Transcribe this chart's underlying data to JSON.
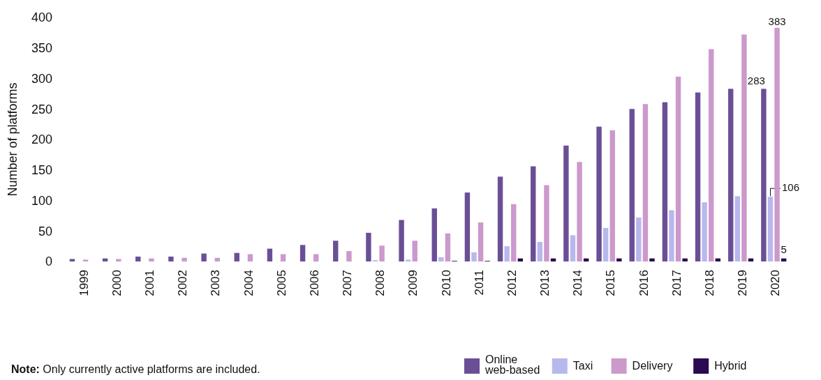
{
  "chart_data": {
    "type": "bar",
    "ylabel": "Number of platforms",
    "categories": [
      "1999",
      "2000",
      "2001",
      "2002",
      "2003",
      "2004",
      "2005",
      "2006",
      "2007",
      "2008",
      "2009",
      "2010",
      "2011",
      "2012",
      "2013",
      "2014",
      "2015",
      "2016",
      "2017",
      "2018",
      "2019",
      "2020"
    ],
    "ylim": [
      0,
      400
    ],
    "yticks": [
      0,
      50,
      100,
      150,
      200,
      250,
      300,
      350,
      400
    ],
    "grid": false,
    "legend": "bottom right",
    "series": [
      {
        "name": "Online web-based",
        "color": "#6a4f96",
        "values": [
          4,
          5,
          8,
          8,
          13,
          14,
          21,
          27,
          34,
          47,
          68,
          87,
          113,
          139,
          156,
          190,
          221,
          250,
          261,
          277,
          283,
          283
        ],
        "value_labels": [
          null,
          null,
          null,
          null,
          null,
          null,
          null,
          null,
          null,
          null,
          null,
          null,
          null,
          null,
          null,
          null,
          null,
          null,
          null,
          null,
          null,
          "283"
        ]
      },
      {
        "name": "Taxi",
        "color": "#b8b8ec",
        "values": [
          0,
          0,
          0,
          0,
          0,
          0,
          0,
          0,
          0,
          2,
          3,
          7,
          15,
          25,
          32,
          43,
          55,
          72,
          84,
          97,
          107,
          106
        ],
        "value_labels": [
          null,
          null,
          null,
          null,
          null,
          null,
          null,
          null,
          null,
          null,
          null,
          null,
          null,
          null,
          null,
          null,
          null,
          null,
          null,
          null,
          null,
          "106"
        ]
      },
      {
        "name": "Delivery",
        "color": "#cc99cc",
        "values": [
          3,
          4,
          5,
          6,
          6,
          12,
          12,
          12,
          17,
          26,
          34,
          46,
          64,
          94,
          125,
          163,
          215,
          258,
          303,
          348,
          372,
          383
        ],
        "value_labels": [
          null,
          null,
          null,
          null,
          null,
          null,
          null,
          null,
          null,
          null,
          null,
          null,
          null,
          null,
          null,
          null,
          null,
          null,
          null,
          null,
          null,
          "383"
        ]
      },
      {
        "name": "Hybrid",
        "color": "#2a0a50",
        "values": [
          0,
          0,
          0,
          0,
          0,
          0,
          0,
          0,
          0,
          0,
          0,
          1,
          1,
          5,
          5,
          5,
          5,
          5,
          5,
          5,
          5,
          5
        ],
        "value_labels": [
          null,
          null,
          null,
          null,
          null,
          null,
          null,
          null,
          null,
          null,
          null,
          null,
          null,
          null,
          null,
          null,
          null,
          null,
          null,
          null,
          null,
          "5"
        ]
      }
    ],
    "annotations": [
      "Note: Only currently active platforms are included."
    ]
  }
}
